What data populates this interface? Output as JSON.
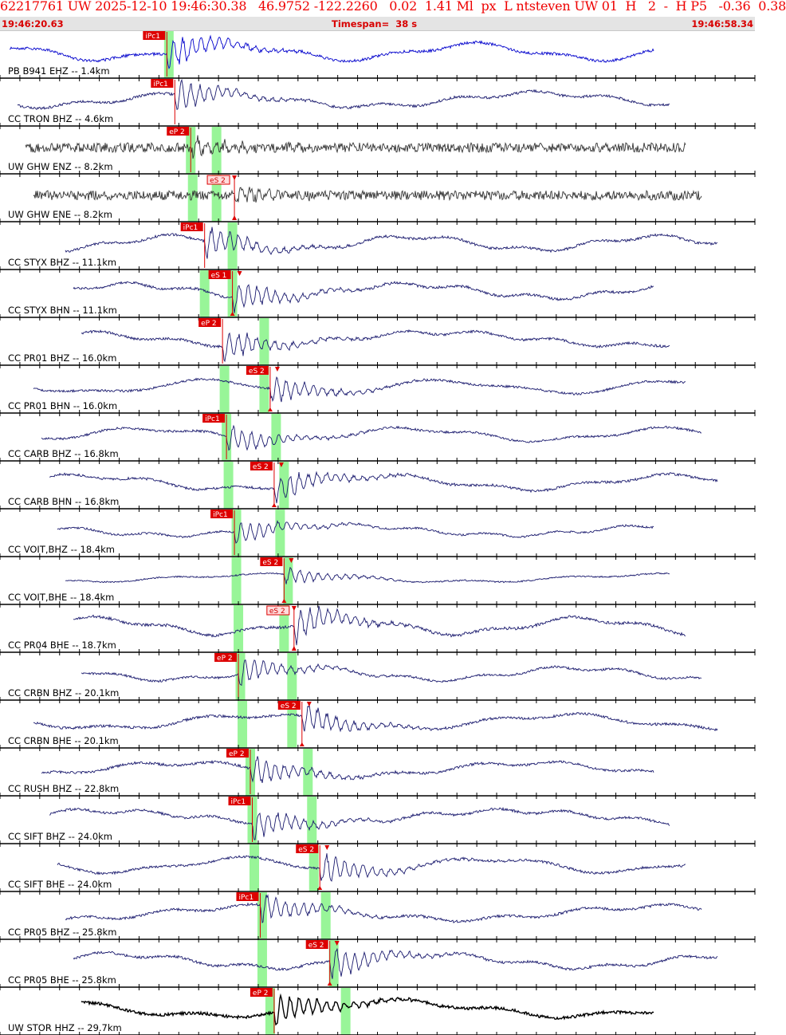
{
  "header": {
    "title": "62217761 UW 2025-12-10 19:46:30.38   46.9752 -122.2260   0.02  1.41 Ml  px  L ntsteven UW 01  H   2  -  H P5   -0.36  0.38",
    "start_time": "19:46:20.63",
    "timespan": "Timespan=  38 s",
    "end_time": "19:46:58.34"
  },
  "colors": {
    "trace_default": "#1a1a6e",
    "trace_first": "#0000cc",
    "trace_ghw": "#333333",
    "trace_stor": "#000000",
    "pick": "#dd0000",
    "window": "#98f598"
  },
  "chart_data": {
    "type": "seismogram",
    "time_start": "19:46:20.63",
    "time_end": "19:46:58.34",
    "timespan_s": 38,
    "traces": [
      {
        "label": "PB B941 EHZ -- 1.4km",
        "picks": [
          {
            "label": "iPc1",
            "t": 8.4
          }
        ],
        "windows": [
          8.5
        ],
        "color": "trace_first",
        "quake": 8.4,
        "env": 1.0
      },
      {
        "label": "CC TRON BHZ -- 4.6km",
        "picks": [
          {
            "label": "iPc1",
            "t": 8.8
          }
        ],
        "windows": [],
        "quake": 8.8,
        "env": 0.9
      },
      {
        "label": "UW GHW ENZ -- 8.2km",
        "picks": [
          {
            "label": "eP 2",
            "t": 9.6
          }
        ],
        "windows": [
          9.6,
          10.9
        ],
        "color": "trace_ghw",
        "quake": 9.6,
        "env": 0.5,
        "noise": true
      },
      {
        "label": "UW GHW ENE -- 8.2km",
        "picks": [
          {
            "label": "eS 2",
            "t": 11.8,
            "hollow": true
          }
        ],
        "windows": [
          9.7,
          10.9
        ],
        "color": "trace_ghw",
        "quake": 11.8,
        "env": 0.45,
        "noise": true
      },
      {
        "label": "CC STYX BHZ -- 11.1km",
        "picks": [
          {
            "label": "iPc1",
            "t": 10.3
          }
        ],
        "windows": [
          11.7
        ],
        "quake": 10.3,
        "env": 0.9
      },
      {
        "label": "CC STYX BHN -- 11.1km",
        "picks": [
          {
            "label": "eS 1",
            "t": 11.7
          }
        ],
        "windows": [
          10.3,
          11.7
        ],
        "quake": 11.7,
        "env": 0.9
      },
      {
        "label": "CC PR01 BHZ -- 16.0km",
        "picks": [
          {
            "label": "eP 2",
            "t": 11.2
          }
        ],
        "windows": [
          13.3
        ],
        "quake": 11.2,
        "env": 0.9
      },
      {
        "label": "CC PR01 BHN -- 16.0km",
        "picks": [
          {
            "label": "eS 2",
            "t": 13.6
          }
        ],
        "windows": [
          11.3,
          13.3
        ],
        "quake": 13.6,
        "env": 0.8
      },
      {
        "label": "CC CARB BHZ -- 16.8km",
        "picks": [
          {
            "label": "iPc1",
            "t": 11.4
          }
        ],
        "windows": [
          11.4,
          13.9
        ],
        "quake": 11.4,
        "env": 0.8
      },
      {
        "label": "CC CARB BHN -- 16.8km",
        "picks": [
          {
            "label": "eS 2",
            "t": 13.8
          }
        ],
        "windows": [
          11.5,
          14.3
        ],
        "quake": 13.8,
        "env": 0.9
      },
      {
        "label": "CC VOIT,BHZ -- 18.4km",
        "picks": [
          {
            "label": "iPc1",
            "t": 11.8
          }
        ],
        "windows": [
          11.9,
          14.1
        ],
        "quake": 11.8,
        "env": 0.7
      },
      {
        "label": "CC VOIT,BHE -- 18.4km",
        "picks": [
          {
            "label": "eS 2",
            "t": 14.3
          }
        ],
        "windows": [
          11.9,
          14.5
        ],
        "quake": 14.3,
        "env": 0.5
      },
      {
        "label": "CC PR04 BHE -- 18.7km",
        "picks": [
          {
            "label": "eS 2",
            "t": 14.8,
            "hollow": true
          }
        ],
        "windows": [
          12.0,
          14.3
        ],
        "quake": 14.8,
        "env": 1.0
      },
      {
        "label": "CC CRBN BHZ -- 20.1km",
        "picks": [
          {
            "label": "eP 2",
            "t": 12.0
          }
        ],
        "windows": [
          12.1,
          14.7
        ],
        "quake": 12.0,
        "env": 0.8
      },
      {
        "label": "CC CRBN BHE -- 20.1km",
        "picks": [
          {
            "label": "eS 2",
            "t": 15.2
          }
        ],
        "windows": [
          12.2,
          14.7
        ],
        "quake": 15.2,
        "env": 0.9
      },
      {
        "label": "CC RUSH BHZ -- 22.8km",
        "picks": [
          {
            "label": "eP 2",
            "t": 12.6
          }
        ],
        "windows": [
          12.6,
          15.5
        ],
        "quake": 12.6,
        "env": 0.9
      },
      {
        "label": "CC SIFT BHZ -- 24.0km",
        "picks": [
          {
            "label": "iPc1",
            "t": 12.7
          }
        ],
        "windows": [
          12.7,
          15.7
        ],
        "quake": 12.7,
        "env": 0.9
      },
      {
        "label": "CC SIFT BHE -- 24.0km",
        "picks": [
          {
            "label": "eS 2",
            "t": 16.1
          }
        ],
        "windows": [
          12.8,
          15.8
        ],
        "quake": 16.1,
        "env": 0.9
      },
      {
        "label": "CC PR05 BHZ -- 25.8km",
        "picks": [
          {
            "label": "iPc1",
            "t": 13.1
          }
        ],
        "windows": [
          13.2,
          16.4
        ],
        "quake": 13.1,
        "env": 0.9
      },
      {
        "label": "CC PR05 BHE -- 25.8km",
        "picks": [
          {
            "label": "eS 2",
            "t": 16.6
          }
        ],
        "windows": [
          13.2,
          16.8
        ],
        "quake": 16.6,
        "env": 0.9
      },
      {
        "label": "UW STOR HHZ -- 29.7km",
        "picks": [
          {
            "label": "eP 2",
            "t": 13.8
          }
        ],
        "windows": [
          13.6,
          17.4
        ],
        "color": "trace_stor",
        "quake": 13.8,
        "env": 1.0
      }
    ]
  }
}
